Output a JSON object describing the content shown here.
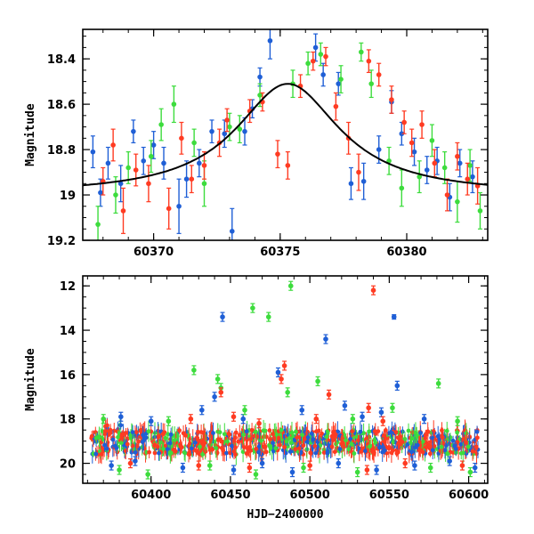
{
  "colors": {
    "blue": "#1f5fd6",
    "green": "#3ddc3d",
    "red": "#ff3b22",
    "model": "#000000"
  },
  "chart_data": [
    {
      "type": "scatter",
      "panel": "top",
      "title": "",
      "xlabel": "",
      "ylabel": "Magnitude",
      "xlim": [
        60367.2,
        60383.2
      ],
      "ylim": [
        19.2,
        18.27
      ],
      "y_inverted": true,
      "xticks": [
        60370,
        60375,
        60380
      ],
      "xtick_labels": [
        "60370",
        "60375",
        "60380"
      ],
      "yticks": [
        18.4,
        18.6,
        18.8,
        19.0,
        19.2
      ],
      "ytick_labels": [
        "18.4",
        "18.6",
        "18.8",
        "19",
        "19.2"
      ],
      "model_curve": {
        "type": "lorentzian",
        "peak_x": 60375.3,
        "peak_mag": 18.51,
        "baseline_mag": 19.0,
        "half_width": 2.5
      },
      "series": [
        {
          "color": "blue",
          "points": [
            [
              60367.6,
              18.81,
              0.07
            ],
            [
              60367.9,
              18.99,
              0.06
            ],
            [
              60368.2,
              18.86,
              0.07
            ],
            [
              60368.7,
              18.95,
              0.08
            ],
            [
              60369.2,
              18.72,
              0.05
            ],
            [
              60369.6,
              18.85,
              0.06
            ],
            [
              60370.0,
              18.78,
              0.06
            ],
            [
              60370.4,
              18.86,
              0.07
            ],
            [
              60371.0,
              19.05,
              0.12
            ],
            [
              60371.3,
              18.93,
              0.08
            ],
            [
              60371.8,
              18.86,
              0.06
            ],
            [
              60372.3,
              18.72,
              0.05
            ],
            [
              60372.8,
              18.73,
              0.06
            ],
            [
              60373.1,
              19.16,
              0.1
            ],
            [
              60373.6,
              18.72,
              0.06
            ],
            [
              60373.9,
              18.62,
              0.04
            ],
            [
              60374.2,
              18.48,
              0.04
            ],
            [
              60374.6,
              18.32,
              0.08
            ],
            [
              60376.4,
              18.35,
              0.06
            ],
            [
              60376.7,
              18.47,
              0.05
            ],
            [
              60377.3,
              18.51,
              0.05
            ],
            [
              60377.8,
              18.95,
              0.07
            ],
            [
              60378.3,
              18.94,
              0.08
            ],
            [
              60378.9,
              18.8,
              0.06
            ],
            [
              60379.4,
              18.59,
              0.05
            ],
            [
              60379.8,
              18.73,
              0.05
            ],
            [
              60380.3,
              18.81,
              0.06
            ],
            [
              60380.8,
              18.89,
              0.06
            ],
            [
              60381.2,
              18.85,
              0.06
            ],
            [
              60381.7,
              19.01,
              0.06
            ],
            [
              60382.1,
              18.86,
              0.06
            ],
            [
              60382.6,
              18.92,
              0.07
            ]
          ]
        },
        {
          "color": "green",
          "points": [
            [
              60367.8,
              19.13,
              0.08
            ],
            [
              60368.5,
              19.0,
              0.08
            ],
            [
              60369.0,
              18.88,
              0.07
            ],
            [
              60369.9,
              18.83,
              0.07
            ],
            [
              60370.3,
              18.69,
              0.07
            ],
            [
              60370.8,
              18.6,
              0.08
            ],
            [
              60371.6,
              18.77,
              0.06
            ],
            [
              60372.0,
              18.95,
              0.1
            ],
            [
              60373.0,
              18.7,
              0.06
            ],
            [
              60373.4,
              18.71,
              0.06
            ],
            [
              60374.2,
              18.56,
              0.05
            ],
            [
              60375.5,
              18.51,
              0.06
            ],
            [
              60376.1,
              18.42,
              0.05
            ],
            [
              60376.6,
              18.38,
              0.05
            ],
            [
              60377.4,
              18.49,
              0.06
            ],
            [
              60378.2,
              18.37,
              0.04
            ],
            [
              60378.6,
              18.51,
              0.06
            ],
            [
              60379.3,
              18.85,
              0.06
            ],
            [
              60379.8,
              18.97,
              0.08
            ],
            [
              60380.5,
              18.92,
              0.07
            ],
            [
              60381.0,
              18.76,
              0.07
            ],
            [
              60381.5,
              18.88,
              0.07
            ],
            [
              60382.0,
              19.03,
              0.09
            ],
            [
              60382.5,
              18.87,
              0.07
            ],
            [
              60382.9,
              19.07,
              0.08
            ]
          ]
        },
        {
          "color": "red",
          "points": [
            [
              60368.0,
              18.94,
              0.06
            ],
            [
              60368.4,
              18.78,
              0.07
            ],
            [
              60368.8,
              19.07,
              0.1
            ],
            [
              60369.3,
              18.89,
              0.07
            ],
            [
              60369.8,
              18.95,
              0.08
            ],
            [
              60370.6,
              19.06,
              0.09
            ],
            [
              60371.1,
              18.75,
              0.07
            ],
            [
              60371.5,
              18.93,
              0.06
            ],
            [
              60372.0,
              18.87,
              0.06
            ],
            [
              60372.6,
              18.77,
              0.06
            ],
            [
              60372.9,
              18.67,
              0.05
            ],
            [
              60373.8,
              18.63,
              0.05
            ],
            [
              60374.3,
              18.59,
              0.04
            ],
            [
              60374.9,
              18.82,
              0.06
            ],
            [
              60375.3,
              18.87,
              0.06
            ],
            [
              60375.8,
              18.52,
              0.05
            ],
            [
              60376.3,
              18.41,
              0.04
            ],
            [
              60376.8,
              18.39,
              0.04
            ],
            [
              60377.2,
              18.61,
              0.06
            ],
            [
              60377.7,
              18.75,
              0.07
            ],
            [
              60378.1,
              18.9,
              0.08
            ],
            [
              60378.5,
              18.41,
              0.05
            ],
            [
              60378.9,
              18.47,
              0.05
            ],
            [
              60379.4,
              18.58,
              0.06
            ],
            [
              60379.9,
              18.68,
              0.05
            ],
            [
              60380.2,
              18.77,
              0.06
            ],
            [
              60380.6,
              18.69,
              0.06
            ],
            [
              60381.1,
              18.86,
              0.06
            ],
            [
              60381.6,
              19.0,
              0.07
            ],
            [
              60382.0,
              18.83,
              0.06
            ],
            [
              60382.4,
              18.93,
              0.07
            ],
            [
              60382.8,
              18.96,
              0.08
            ]
          ]
        }
      ]
    },
    {
      "type": "scatter",
      "panel": "bottom",
      "title": "",
      "xlabel": "HJD−2400000",
      "ylabel": "Magnitude",
      "xlim": [
        60357,
        60612
      ],
      "ylim": [
        20.9,
        11.55
      ],
      "y_inverted": true,
      "xticks": [
        60400,
        60450,
        60500,
        60550,
        60600
      ],
      "xtick_labels": [
        "60400",
        "60450",
        "60500",
        "60550",
        "60600"
      ],
      "yticks": [
        12,
        14,
        16,
        18,
        20
      ],
      "ytick_labels": [
        "12",
        "14",
        "16",
        "18",
        "20"
      ],
      "series": [
        {
          "color": "blue",
          "points": [
            [
              60445,
              13.4,
              0.2
            ],
            [
              60510,
              14.4,
              0.2
            ],
            [
              60553,
              13.4,
              0.1
            ],
            [
              60480,
              15.9,
              0.2
            ],
            [
              60555,
              16.5,
              0.2
            ],
            [
              60440,
              17.0,
              0.2
            ],
            [
              60432,
              17.6,
              0.2
            ],
            [
              60495,
              17.6,
              0.2
            ],
            [
              60522,
              17.4,
              0.2
            ],
            [
              60533,
              17.9,
              0.2
            ],
            [
              60545,
              17.7,
              0.2
            ],
            [
              60458,
              18.0,
              0.2
            ],
            [
              60381,
              17.9,
              0.2
            ],
            [
              60400,
              18.1,
              0.2
            ],
            [
              60572,
              18.0,
              0.2
            ],
            [
              60375,
              20.1,
              0.2
            ],
            [
              60390,
              19.9,
              0.2
            ],
            [
              60420,
              20.2,
              0.2
            ],
            [
              60452,
              20.3,
              0.2
            ],
            [
              60470,
              20.0,
              0.2
            ],
            [
              60489,
              20.4,
              0.2
            ],
            [
              60518,
              20.0,
              0.2
            ],
            [
              60542,
              20.3,
              0.2
            ],
            [
              60566,
              20.1,
              0.2
            ],
            [
              60588,
              19.9,
              0.2
            ],
            [
              60604,
              20.2,
              0.2
            ]
          ]
        },
        {
          "color": "green",
          "points": [
            [
              60488,
              12.0,
              0.2
            ],
            [
              60464,
              13.0,
              0.2
            ],
            [
              60474,
              13.4,
              0.2
            ],
            [
              60427,
              15.8,
              0.2
            ],
            [
              60442,
              16.2,
              0.2
            ],
            [
              60581,
              16.4,
              0.2
            ],
            [
              60444,
              16.6,
              0.2
            ],
            [
              60486,
              16.8,
              0.2
            ],
            [
              60505,
              16.3,
              0.2
            ],
            [
              60552,
              17.5,
              0.2
            ],
            [
              60459,
              17.6,
              0.2
            ],
            [
              60370,
              18.0,
              0.2
            ],
            [
              60411,
              18.1,
              0.2
            ],
            [
              60527,
              18.0,
              0.2
            ],
            [
              60593,
              18.1,
              0.2
            ],
            [
              60380,
              20.3,
              0.2
            ],
            [
              60398,
              20.5,
              0.2
            ],
            [
              60437,
              20.1,
              0.2
            ],
            [
              60466,
              20.5,
              0.2
            ],
            [
              60496,
              20.2,
              0.2
            ],
            [
              60530,
              20.4,
              0.2
            ],
            [
              60576,
              20.2,
              0.2
            ],
            [
              60601,
              20.4,
              0.2
            ]
          ]
        },
        {
          "color": "red",
          "points": [
            [
              60540,
              12.2,
              0.2
            ],
            [
              60484,
              15.6,
              0.2
            ],
            [
              60482,
              16.2,
              0.2
            ],
            [
              60444,
              16.8,
              0.2
            ],
            [
              60512,
              16.9,
              0.2
            ],
            [
              60537,
              17.5,
              0.2
            ],
            [
              60468,
              18.2,
              0.2
            ],
            [
              60452,
              17.9,
              0.2
            ],
            [
              60546,
              18.1,
              0.2
            ],
            [
              60504,
              18.0,
              0.2
            ],
            [
              60425,
              18.0,
              0.2
            ],
            [
              60387,
              20.0,
              0.2
            ],
            [
              60430,
              20.1,
              0.2
            ],
            [
              60462,
              20.2,
              0.2
            ],
            [
              60500,
              20.1,
              0.2
            ],
            [
              60536,
              20.3,
              0.2
            ],
            [
              60560,
              20.0,
              0.2
            ],
            [
              60596,
              20.1,
              0.2
            ]
          ]
        }
      ]
    }
  ]
}
